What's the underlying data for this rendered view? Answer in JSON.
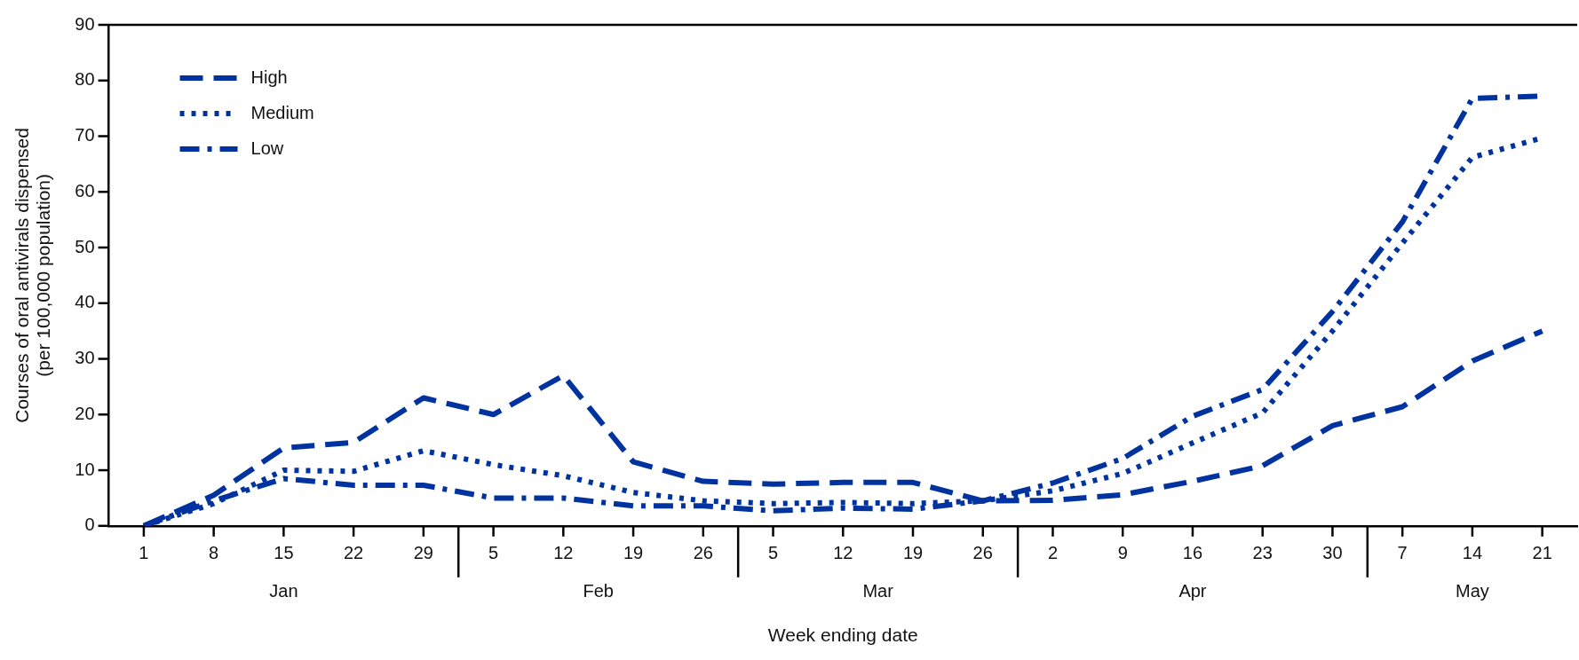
{
  "chart_data": {
    "type": "line",
    "xlabel": "Week ending date",
    "ylabel": "Courses of oral antivirals dispensed\n(per 100,000 population)",
    "categories": [
      "1",
      "8",
      "15",
      "22",
      "29",
      "5",
      "12",
      "19",
      "26",
      "5",
      "12",
      "19",
      "26",
      "2",
      "9",
      "16",
      "23",
      "30",
      "7",
      "14",
      "21"
    ],
    "series": [
      {
        "name": "High",
        "color": "#0033a0",
        "line_style": "dashed",
        "values": [
          0,
          5.5,
          14,
          15,
          23,
          20,
          27,
          11.5,
          8,
          7.5,
          7.8,
          7.8,
          4.5,
          4.6,
          5.6,
          8,
          10.8,
          18,
          21.4,
          29.6,
          35
        ]
      },
      {
        "name": "Medium",
        "color": "#0033a0",
        "line_style": "dotted",
        "values": [
          0,
          4,
          10,
          9.8,
          13.5,
          11,
          9,
          6,
          4.5,
          4,
          4.2,
          4,
          4.5,
          6.3,
          9.4,
          14.9,
          20.3,
          35,
          50.8,
          66.2,
          69.7
        ]
      },
      {
        "name": "Low",
        "color": "#0033a0",
        "line_style": "dashdot",
        "values": [
          0,
          4.5,
          8.5,
          7.3,
          7.3,
          5,
          5,
          3.6,
          3.6,
          2.7,
          3.2,
          3,
          4.5,
          7.7,
          12.1,
          19.7,
          24.5,
          38.5,
          54.6,
          76.8,
          77.2
        ]
      }
    ],
    "ylim": [
      0,
      90
    ],
    "yticks": [
      0,
      10,
      20,
      30,
      40,
      50,
      60,
      70,
      80,
      90
    ],
    "grid": false,
    "legend": "top left",
    "marker": "none",
    "annotations": [
      "Jan",
      "Feb",
      "Mar",
      "Apr",
      "May"
    ]
  }
}
